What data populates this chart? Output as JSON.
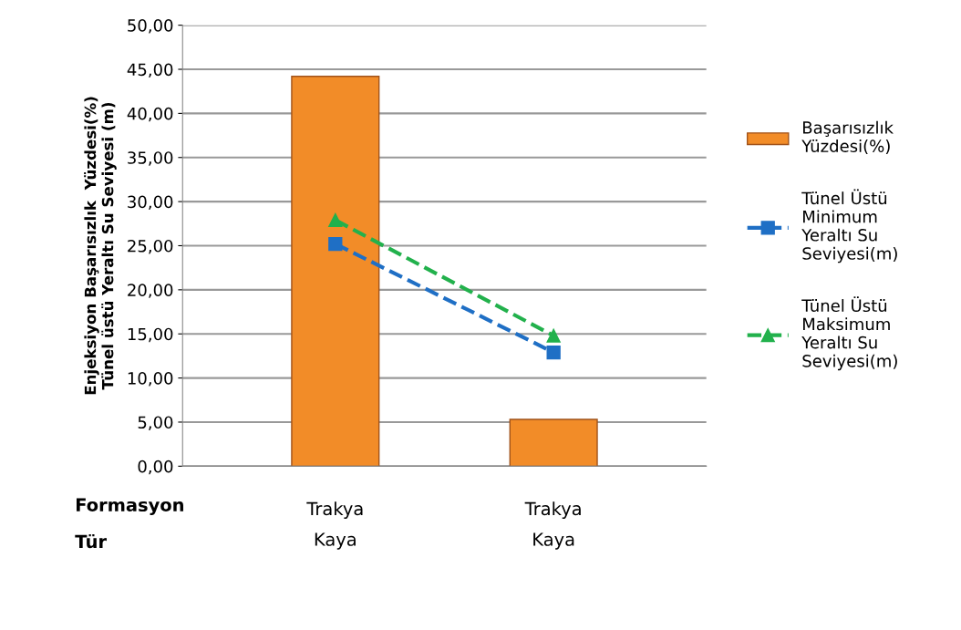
{
  "chart_data": {
    "type": "bar",
    "ylabel": "Enjeksiyon Başarısızlık  Yüzdesi(%)\nTünel üstü Yeraltı Su Seviyesi (m)",
    "categories": [
      "Trakya\nKaya",
      "Trakya\nKaya"
    ],
    "annotations": [
      "Formasyon",
      "Tür"
    ],
    "series": [
      {
        "name": "Başarısızlık\nYüzdesi(%)",
        "color": "#f28c28",
        "values": [
          44.2,
          5.3
        ]
      },
      {
        "name": "Tünel Üstü\nMinimum\nYeraltı Su\nSeviyesi(m)",
        "type": "line",
        "color": "#1f6fc5",
        "values": [
          25.2,
          12.9
        ],
        "marker": "square",
        "line_style": "dashed"
      },
      {
        "name": "Tünel Üstü\nMaksimum\nYeraltı Su\nSeviyesi(m)",
        "type": "line",
        "color": "#22b14c",
        "values": [
          27.9,
          14.8
        ],
        "marker": "triangle",
        "line_style": "dashed"
      }
    ],
    "ylim": [
      0,
      50
    ],
    "yticks": [
      {
        "value": 0,
        "label": "0,00"
      },
      {
        "value": 5,
        "label": "5,00"
      },
      {
        "value": 10,
        "label": "10,00"
      },
      {
        "value": 15,
        "label": "15,00"
      },
      {
        "value": 20,
        "label": "20,00"
      },
      {
        "value": 25,
        "label": "25,00"
      },
      {
        "value": 30,
        "label": "30,00"
      },
      {
        "value": 35,
        "label": "35,00"
      },
      {
        "value": 40,
        "label": "40,00"
      },
      {
        "value": 45,
        "label": "45,00"
      },
      {
        "value": 50,
        "label": "50,00"
      }
    ],
    "grid": "y",
    "legend": "right"
  }
}
